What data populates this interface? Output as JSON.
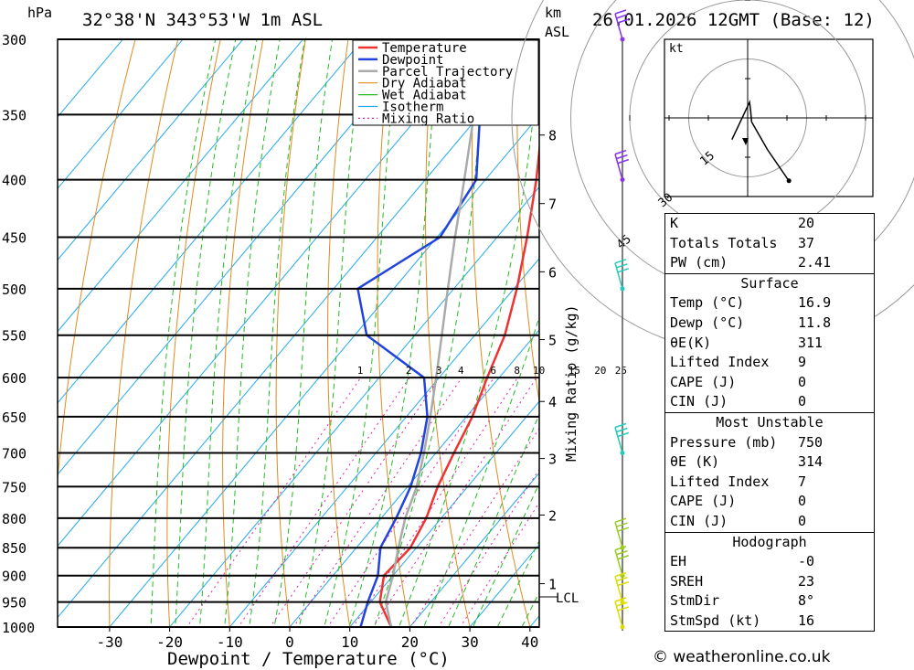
{
  "header": {
    "hpa_unit": "hPa",
    "location": "32°38'N 343°53'W 1m ASL",
    "km_unit": "km",
    "asl_unit": "ASL",
    "datetime": "26.01.2026 12GMT (Base: 12)"
  },
  "colors": {
    "temperature": "#ee3333",
    "dewpoint": "#2244dd",
    "parcel": "#aaaaaa",
    "dry_adiabat": "#e08a1e",
    "wet_adiabat": "#22bb22",
    "isotherm": "#22aaee",
    "mixing_ratio": "#dd22aa",
    "wind_barb_upper": "#8833ee",
    "wind_barb_mid": "#22ccbb",
    "wind_barb_low": "#99cc22",
    "wind_barb_sfc": "#dddd00"
  },
  "chart_data": {
    "type": "line",
    "xlabel": "Dewpoint / Temperature (°C)",
    "ylabel_right": "Mixing Ratio (g/kg)",
    "x_ticks": [
      -30,
      -20,
      -10,
      0,
      10,
      20,
      30,
      40
    ],
    "pressure_levels": [
      300,
      350,
      400,
      450,
      500,
      550,
      600,
      650,
      700,
      750,
      800,
      850,
      900,
      950,
      1000
    ],
    "height_ticks_km": [
      {
        "label": "8",
        "p": 365
      },
      {
        "label": "7",
        "p": 420
      },
      {
        "label": "6",
        "p": 483
      },
      {
        "label": "5",
        "p": 555
      },
      {
        "label": "4",
        "p": 630
      },
      {
        "label": "3",
        "p": 708
      },
      {
        "label": "2",
        "p": 795
      },
      {
        "label": "1",
        "p": 915
      }
    ],
    "lcl": {
      "label": "LCL",
      "p": 940
    },
    "mixing_ratio_labels": [
      "1",
      "2",
      "3",
      "4",
      "6",
      "8",
      "10",
      "15",
      "20",
      "25"
    ],
    "mixing_ratio_values": [
      1,
      2,
      3,
      4,
      6,
      8,
      10,
      15,
      20,
      25
    ],
    "series": [
      {
        "name": "Temperature",
        "points": [
          [
            16.9,
            1000
          ],
          [
            11.5,
            950
          ],
          [
            8.5,
            900
          ],
          [
            9.0,
            850
          ],
          [
            7.5,
            800
          ],
          [
            5.0,
            750
          ],
          [
            3.0,
            700
          ],
          [
            1.0,
            650
          ],
          [
            -2.0,
            600
          ],
          [
            -5.0,
            550
          ],
          [
            -9.5,
            500
          ],
          [
            -15.0,
            450
          ],
          [
            -21.5,
            400
          ],
          [
            -29.5,
            350
          ],
          [
            -38.0,
            300
          ]
        ]
      },
      {
        "name": "Dewpoint",
        "points": [
          [
            11.8,
            1000
          ],
          [
            9.5,
            950
          ],
          [
            7.5,
            900
          ],
          [
            4.0,
            850
          ],
          [
            2.5,
            800
          ],
          [
            0.5,
            750
          ],
          [
            -2.5,
            700
          ],
          [
            -6.5,
            650
          ],
          [
            -12.5,
            600
          ],
          [
            -28.0,
            550
          ],
          [
            -36.0,
            500
          ],
          [
            -29.5,
            450
          ],
          [
            -31.5,
            400
          ],
          [
            -40.0,
            350
          ],
          [
            -51.0,
            300
          ]
        ]
      },
      {
        "name": "Parcel Trajectory",
        "points": [
          [
            16.9,
            1000
          ],
          [
            12.5,
            950
          ],
          [
            10.0,
            900
          ],
          [
            7.0,
            850
          ],
          [
            4.0,
            800
          ],
          [
            1.5,
            750
          ],
          [
            -2.0,
            700
          ],
          [
            -6.0,
            650
          ],
          [
            -10.5,
            600
          ],
          [
            -15.5,
            550
          ],
          [
            -21.0,
            500
          ],
          [
            -27.0,
            450
          ],
          [
            -33.5,
            400
          ],
          [
            -41.0,
            350
          ],
          [
            -50.0,
            300
          ]
        ]
      }
    ],
    "legend": [
      "Temperature",
      "Dewpoint",
      "Parcel Trajectory",
      "Dry Adiabat",
      "Wet Adiabat",
      "Isotherm",
      "Mixing Ratio"
    ],
    "legend_position": "top-right",
    "hodograph": {
      "unit": "kt",
      "ring_labels": [
        "15",
        "30",
        "45"
      ],
      "points": [
        [
          -4,
          -5.5
        ],
        [
          0.5,
          4
        ],
        [
          0.8,
          1.5
        ],
        [
          1,
          -1
        ],
        [
          5,
          -8
        ],
        [
          10.5,
          -16
        ]
      ]
    },
    "wind_barbs_pressure": [
      300,
      400,
      500,
      700,
      850,
      900,
      950,
      1000
    ]
  },
  "table": {
    "indices": [
      {
        "k": "K",
        "v": "20"
      },
      {
        "k": "Totals Totals",
        "v": "37"
      },
      {
        "k": "PW (cm)",
        "v": "2.41"
      }
    ],
    "surface_title": "Surface",
    "surface": [
      {
        "k": "Temp (°C)",
        "v": "16.9"
      },
      {
        "k": "Dewp (°C)",
        "v": "11.8"
      },
      {
        "k": "θE(K)",
        "v": "311"
      },
      {
        "k": "Lifted Index",
        "v": "9"
      },
      {
        "k": "CAPE (J)",
        "v": "0"
      },
      {
        "k": "CIN (J)",
        "v": "0"
      }
    ],
    "unstable_title": "Most Unstable",
    "unstable": [
      {
        "k": "Pressure (mb)",
        "v": "750"
      },
      {
        "k": "θE (K)",
        "v": "314"
      },
      {
        "k": "Lifted Index",
        "v": "7"
      },
      {
        "k": "CAPE (J)",
        "v": "0"
      },
      {
        "k": "CIN (J)",
        "v": "0"
      }
    ],
    "hodo_title": "Hodograph",
    "hodo": [
      {
        "k": "EH",
        "v": "-0"
      },
      {
        "k": "SREH",
        "v": "23"
      },
      {
        "k": "StmDir",
        "v": "8°"
      },
      {
        "k": "StmSpd (kt)",
        "v": "16"
      }
    ]
  },
  "credit": "© weatheronline.co.uk"
}
